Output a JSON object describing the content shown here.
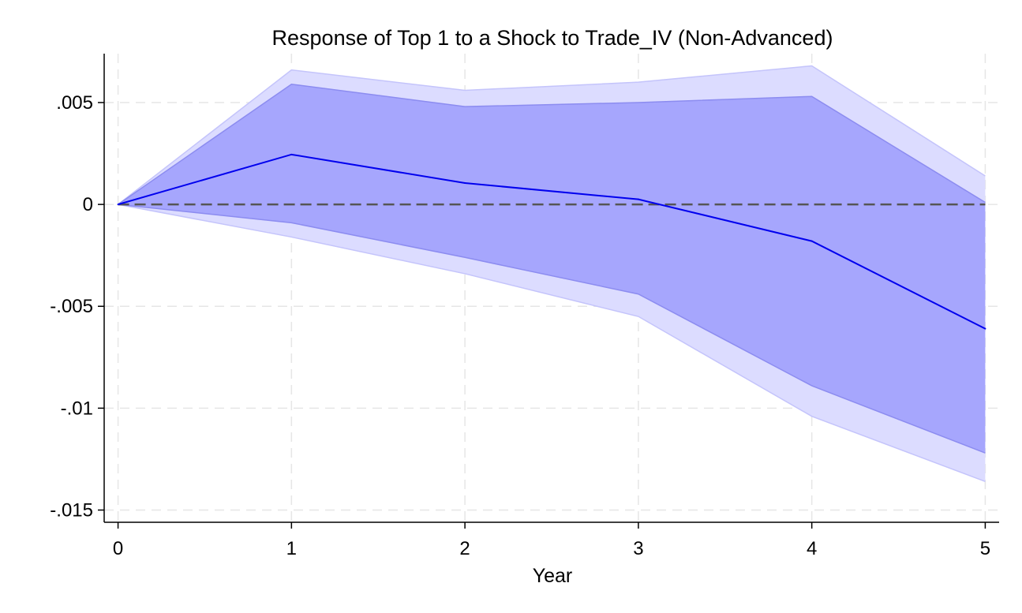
{
  "chart_data": {
    "type": "area",
    "title": "Response of Top 1 to a Shock to Trade_IV (Non-Advanced)",
    "xlabel": "Year",
    "ylabel": "",
    "x": [
      0,
      1,
      2,
      3,
      4,
      5
    ],
    "xticks": [
      0,
      1,
      2,
      3,
      4,
      5
    ],
    "xtick_labels": [
      "0",
      "1",
      "2",
      "3",
      "4",
      "5"
    ],
    "yticks": [
      0.005,
      0,
      -0.005,
      -0.01,
      -0.015
    ],
    "ytick_labels": [
      ".005",
      "0",
      "-.005",
      "-.01",
      "-.015"
    ],
    "xlim": [
      -0.08,
      5.08
    ],
    "ylim": [
      -0.0156,
      0.0074
    ],
    "grid": true,
    "zero_line": true,
    "series": [
      {
        "role": "line",
        "values": [
          0,
          0.00245,
          0.00105,
          0.00025,
          -0.0018,
          -0.0061
        ],
        "color": "#0000ee"
      },
      {
        "role": "band_inner_upper",
        "values": [
          0,
          0.0059,
          0.0048,
          0.005,
          0.0053,
          0.0001
        ],
        "color": "#a6a6fd"
      },
      {
        "role": "band_inner_lower",
        "values": [
          0,
          -0.0009,
          -0.0026,
          -0.0044,
          -0.0089,
          -0.0122
        ],
        "color": "#a6a6fd"
      },
      {
        "role": "band_outer_upper",
        "values": [
          0,
          0.0066,
          0.0056,
          0.006,
          0.0068,
          0.0014
        ],
        "color": "#dcdcff"
      },
      {
        "role": "band_outer_lower",
        "values": [
          0,
          -0.0016,
          -0.0034,
          -0.0055,
          -0.0104,
          -0.0136
        ],
        "color": "#dcdcff"
      }
    ],
    "colors": {
      "outer_band": "#dcdcff",
      "inner_band": "#a6a6fd",
      "band_edge": "#8c8cf0",
      "line": "#0000ee",
      "zero_line": "#555555"
    }
  }
}
